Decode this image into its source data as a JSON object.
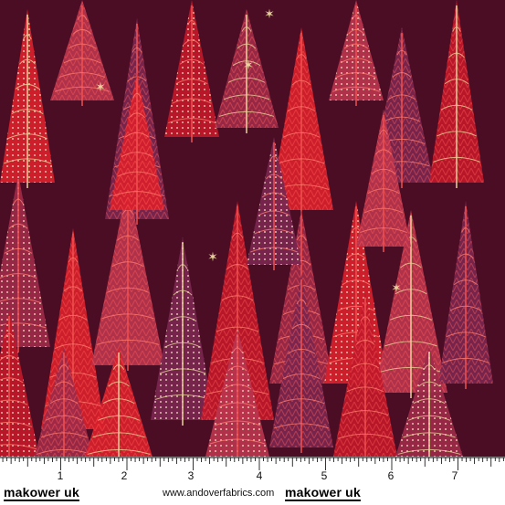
{
  "footer": {
    "brand_left": "makower uk",
    "website": "www.andoverfabrics.com",
    "brand_right": "makower uk"
  },
  "ruler": {
    "numbers": [
      "1",
      "2",
      "3",
      "4",
      "5",
      "6",
      "7"
    ]
  },
  "colors": {
    "background": "#4a0d24",
    "red_tree": "#d8202c",
    "pink_tree": "#b8344e",
    "purple_tree": "#7a2650",
    "gold": "#e8d49a",
    "cream": "#f1e3c2"
  }
}
